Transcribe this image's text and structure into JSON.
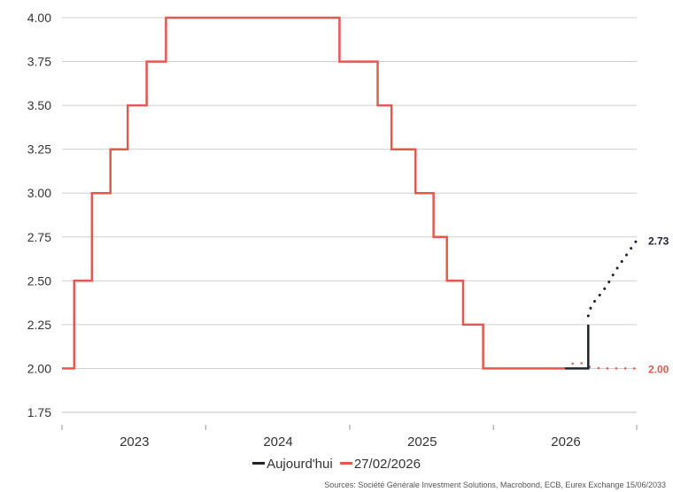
{
  "chart_data": {
    "type": "line",
    "title": "",
    "xlabel": "",
    "ylabel": "",
    "ylim": [
      1.75,
      4.0
    ],
    "xlim": [
      "2022-07-01",
      "2026-06-30"
    ],
    "y_ticks": [
      "4.00",
      "3.75",
      "3.50",
      "3.25",
      "3.00",
      "2.75",
      "2.50",
      "2.25",
      "2.00",
      "1.75"
    ],
    "x_ticks": [
      "2023",
      "2024",
      "2025",
      "2026"
    ],
    "grid": true,
    "legend_position": "bottom",
    "series": [
      {
        "name": "Aujourd'hui",
        "color": "#1f2233",
        "style": "step",
        "points": [
          [
            "2022-07-01",
            2.0
          ],
          [
            "2022-08-01",
            2.0
          ],
          [
            "2022-08-01",
            2.5
          ],
          [
            "2022-09-15",
            2.5
          ],
          [
            "2022-09-15",
            3.0
          ],
          [
            "2022-11-01",
            3.0
          ],
          [
            "2022-11-01",
            3.25
          ],
          [
            "2022-12-15",
            3.25
          ],
          [
            "2022-12-15",
            3.5
          ],
          [
            "2023-02-01",
            3.5
          ],
          [
            "2023-02-01",
            3.75
          ],
          [
            "2023-03-22",
            3.75
          ],
          [
            "2023-03-22",
            4.0
          ],
          [
            "2024-06-05",
            4.0
          ],
          [
            "2024-06-05",
            3.75
          ],
          [
            "2024-09-10",
            3.75
          ],
          [
            "2024-09-10",
            3.5
          ],
          [
            "2024-10-15",
            3.5
          ],
          [
            "2024-10-15",
            3.25
          ],
          [
            "2024-12-15",
            3.25
          ],
          [
            "2024-12-15",
            3.0
          ],
          [
            "2025-01-30",
            3.0
          ],
          [
            "2025-01-30",
            2.75
          ],
          [
            "2025-03-05",
            2.75
          ],
          [
            "2025-03-05",
            2.5
          ],
          [
            "2025-04-15",
            2.5
          ],
          [
            "2025-04-15",
            2.25
          ],
          [
            "2025-06-05",
            2.25
          ],
          [
            "2025-06-05",
            2.0
          ],
          [
            "2026-02-27",
            2.0
          ]
        ]
      },
      {
        "name": "27/02/2026",
        "color": "#e05a4f",
        "style": "step",
        "points": [
          [
            "2022-07-01",
            2.0
          ],
          [
            "2022-08-01",
            2.0
          ],
          [
            "2022-08-01",
            2.5
          ],
          [
            "2022-09-15",
            2.5
          ],
          [
            "2022-09-15",
            3.0
          ],
          [
            "2022-11-01",
            3.0
          ],
          [
            "2022-11-01",
            3.25
          ],
          [
            "2022-12-15",
            3.25
          ],
          [
            "2022-12-15",
            3.5
          ],
          [
            "2023-02-01",
            3.5
          ],
          [
            "2023-02-01",
            3.75
          ],
          [
            "2023-03-22",
            3.75
          ],
          [
            "2023-03-22",
            4.0
          ],
          [
            "2024-06-05",
            4.0
          ],
          [
            "2024-06-05",
            3.75
          ],
          [
            "2024-09-10",
            3.75
          ],
          [
            "2024-09-10",
            3.5
          ],
          [
            "2024-10-15",
            3.5
          ],
          [
            "2024-10-15",
            3.25
          ],
          [
            "2024-12-15",
            3.25
          ],
          [
            "2024-12-15",
            3.0
          ],
          [
            "2025-01-30",
            3.0
          ],
          [
            "2025-01-30",
            2.75
          ],
          [
            "2025-03-05",
            2.75
          ],
          [
            "2025-03-05",
            2.5
          ],
          [
            "2025-04-15",
            2.5
          ],
          [
            "2025-04-15",
            2.25
          ],
          [
            "2025-06-05",
            2.25
          ],
          [
            "2025-06-05",
            2.0
          ],
          [
            "2025-12-30",
            2.0
          ]
        ]
      }
    ],
    "black_step": [
      [
        "2025-12-30",
        2.0
      ],
      [
        "2026-02-27",
        2.0
      ],
      [
        "2026-02-27",
        2.25
      ]
    ],
    "black_forecast": {
      "color": "#1f2233",
      "points": [
        [
          "2026-02-27",
          2.3
        ],
        [
          "2026-03-07",
          2.36
        ],
        [
          "2026-03-21",
          2.4
        ],
        [
          "2026-04-05",
          2.44
        ],
        [
          "2026-04-20",
          2.49
        ],
        [
          "2026-05-05",
          2.55
        ],
        [
          "2026-05-20",
          2.6
        ],
        [
          "2026-06-05",
          2.65
        ],
        [
          "2026-06-20",
          2.7
        ],
        [
          "2026-06-30",
          2.73
        ]
      ]
    },
    "red_forecast": {
      "color": "#e05a4f",
      "points": [
        [
          "2025-12-30",
          2.0
        ],
        [
          "2026-01-20",
          2.03
        ],
        [
          "2026-02-10",
          2.03
        ],
        [
          "2026-03-01",
          2.01
        ],
        [
          "2026-04-01",
          2.0
        ],
        [
          "2026-05-01",
          2.0
        ],
        [
          "2026-06-01",
          2.0
        ],
        [
          "2026-06-30",
          2.0
        ]
      ]
    },
    "end_labels": [
      {
        "text": "2.73",
        "value": 2.73,
        "color": "#1f2233"
      },
      {
        "text": "2.00",
        "value": 2.0,
        "color": "#e05a4f"
      }
    ]
  },
  "legend": {
    "items": [
      {
        "label": "Aujourd'hui",
        "color": "#1f2233"
      },
      {
        "label": "27/02/2026",
        "color": "#e05a4f"
      }
    ]
  },
  "source": "Sources: Société Générale Investment Solutions, Macrobond, ECB, Eurex Exchange 15/06/2033"
}
